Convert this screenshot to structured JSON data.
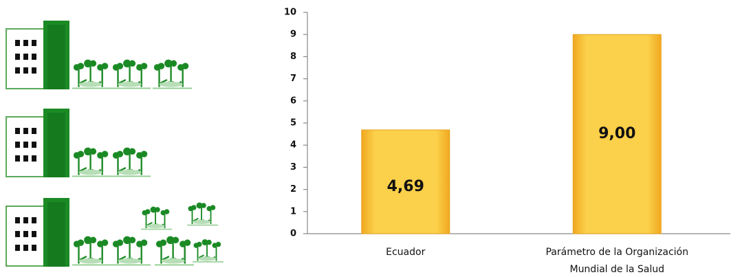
{
  "chart_data": {
    "type": "bar",
    "categories": [
      "Ecuador",
      "Parámetro de la Organización Mundial de la Salud"
    ],
    "values": [
      4.69,
      9.0
    ],
    "value_labels": [
      "4,69",
      "9,00"
    ],
    "color": "#f9c843",
    "ylim": [
      0,
      10
    ],
    "yticks": [
      0,
      1,
      2,
      3,
      4,
      5,
      6,
      7,
      8,
      9,
      10
    ]
  }
}
